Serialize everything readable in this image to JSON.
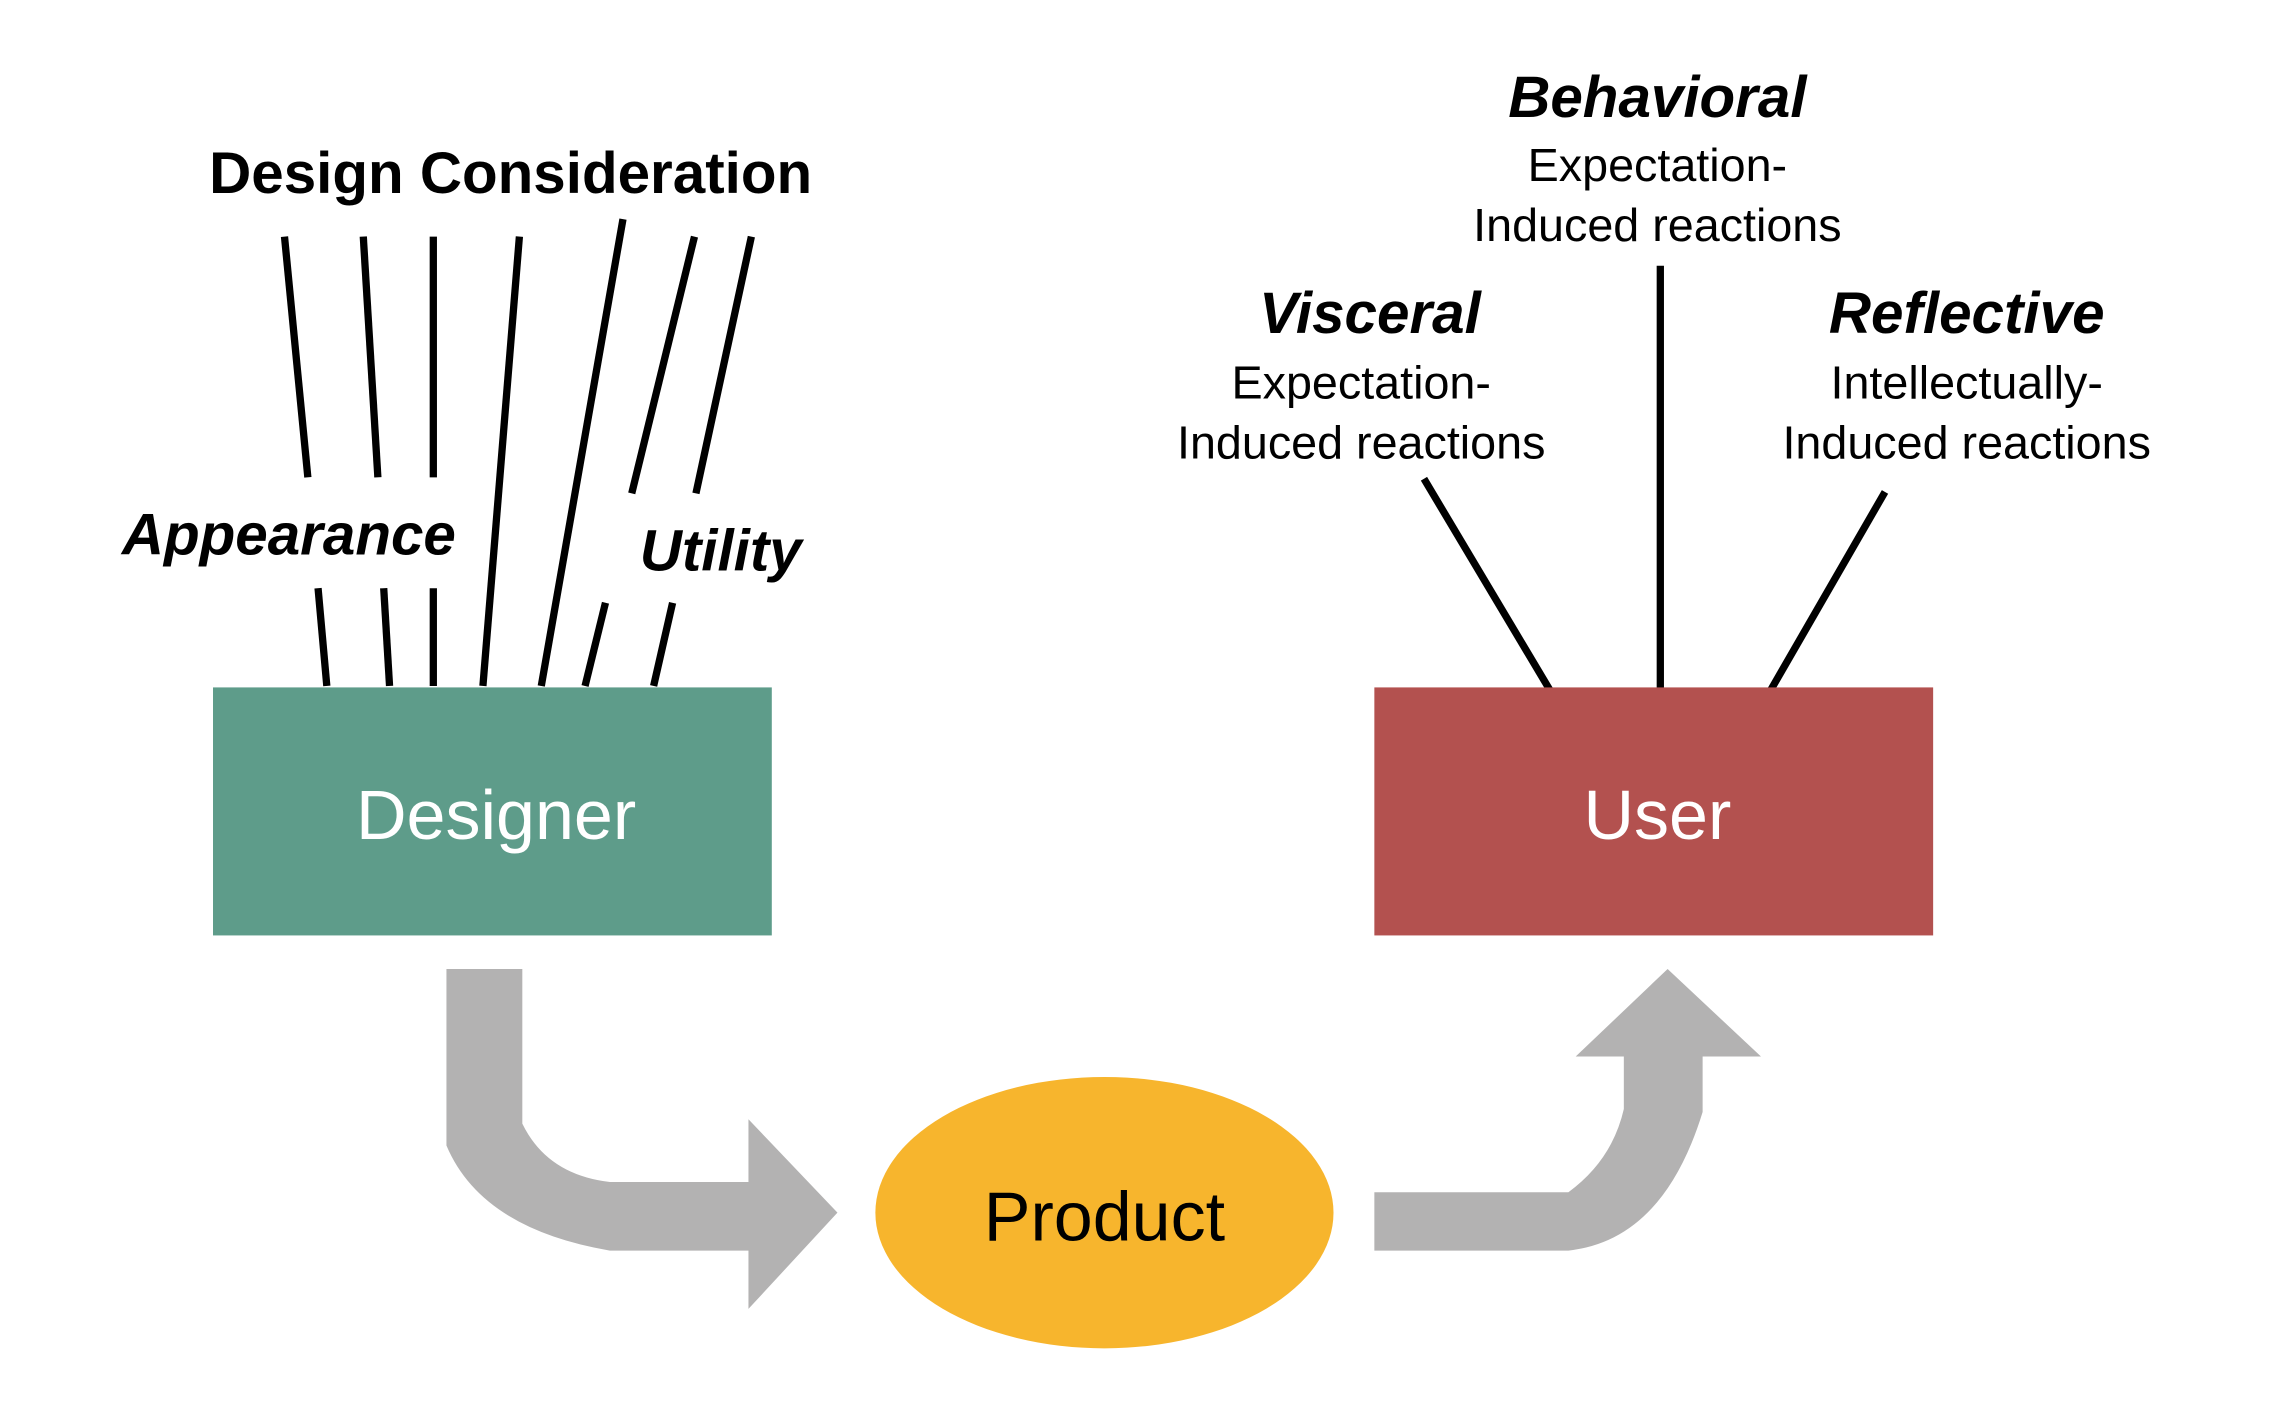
{
  "title": "Design Consideration",
  "designer_labels": {
    "appearance": "Appearance",
    "utility": "Utility"
  },
  "nodes": {
    "designer": "Designer",
    "product": "Product",
    "user": "User"
  },
  "user_levels": [
    {
      "name": "Behavioral",
      "line1": "Expectation-",
      "line2": "Induced reactions"
    },
    {
      "name": "Visceral",
      "line1": "Expectation-",
      "line2": "Induced reactions"
    },
    {
      "name": "Reflective",
      "line1": "Intellectually-",
      "line2": "Induced reactions"
    }
  ],
  "colors": {
    "designer": "#5e9c8a",
    "user": "#b3514f",
    "product": "#f7b52d",
    "arrow": "#b3b2b2"
  }
}
